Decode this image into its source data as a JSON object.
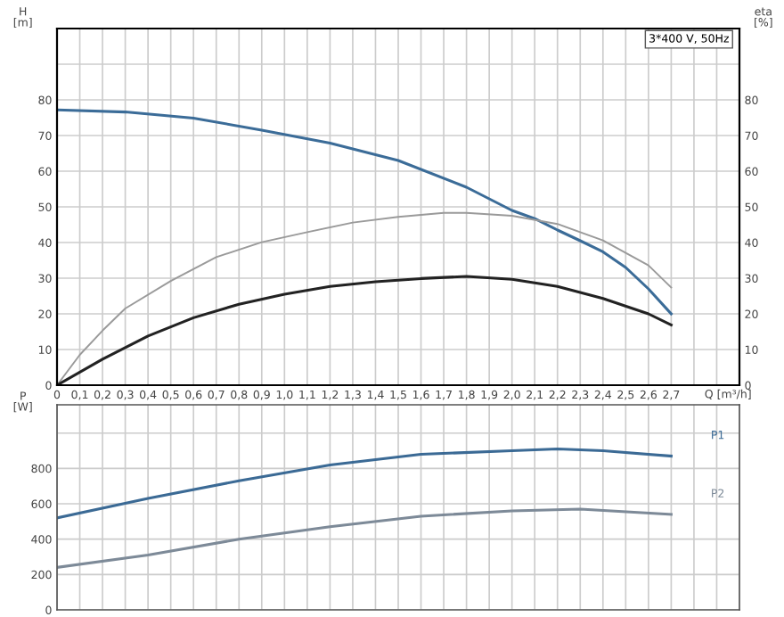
{
  "chart_data": [
    {
      "type": "line",
      "xlabel": "Q [m³/h]",
      "ylabel": "H\n[m]",
      "y2label": "eta\n[%]",
      "annotations": [
        "3*400 V, 50Hz"
      ],
      "xlim": [
        0,
        3.0
      ],
      "xticks": [
        0,
        {
          "value": 0.1,
          "label": "0,1"
        },
        {
          "value": 0.2,
          "label": "0,2"
        },
        {
          "value": 0.3,
          "label": "0,3"
        },
        {
          "value": 0.4,
          "label": "0,4"
        },
        {
          "value": 0.5,
          "label": "0,5"
        },
        {
          "value": 0.6,
          "label": "0,6"
        },
        {
          "value": 0.7,
          "label": "0,7"
        },
        {
          "value": 0.8,
          "label": "0,8"
        },
        {
          "value": 0.9,
          "label": "0,9"
        },
        {
          "value": 1.0,
          "label": "1,0"
        },
        {
          "value": 1.1,
          "label": "1,1"
        },
        {
          "value": 1.2,
          "label": "1,2"
        },
        {
          "value": 1.3,
          "label": "1,3"
        },
        {
          "value": 1.4,
          "label": "1,4"
        },
        {
          "value": 1.5,
          "label": "1,5"
        },
        {
          "value": 1.6,
          "label": "1,6"
        },
        {
          "value": 1.7,
          "label": "1,7"
        },
        {
          "value": 1.8,
          "label": "1,8"
        },
        {
          "value": 1.9,
          "label": "1,9"
        },
        {
          "value": 2.0,
          "label": "2,0"
        },
        {
          "value": 2.1,
          "label": "2,1"
        },
        {
          "value": 2.2,
          "label": "2,2"
        },
        {
          "value": 2.3,
          "label": "2,3"
        },
        {
          "value": 2.4,
          "label": "2,4"
        },
        {
          "value": 2.5,
          "label": "2,5"
        },
        {
          "value": 2.6,
          "label": "2,6"
        },
        {
          "value": 2.7,
          "label": "2,7"
        },
        {
          "value": 2.8,
          "label": null
        },
        {
          "value": 2.9,
          "label": null
        },
        {
          "value": 3.0,
          "label": null
        }
      ],
      "ylim": [
        0,
        100
      ],
      "yticks": [
        0,
        10,
        20,
        30,
        40,
        50,
        60,
        70,
        80,
        {
          "value": 90,
          "label": null
        }
      ],
      "y2lim": [
        0,
        100
      ],
      "y2ticks": [
        0,
        10,
        20,
        30,
        40,
        50,
        60,
        70,
        80,
        {
          "value": 90,
          "label": null
        }
      ],
      "grid": true,
      "legend": false,
      "marker": "none",
      "series": [
        {
          "color": "#3b6c98",
          "x": [
            0,
            0.3,
            0.6,
            0.9,
            1.2,
            1.5,
            1.8,
            2.0,
            2.1,
            2.2,
            2.3,
            2.4,
            2.5,
            2.6,
            2.7
          ],
          "values": [
            77.2,
            76.6,
            74.9,
            71.5,
            67.9,
            63.0,
            55.5,
            49.0,
            46.7,
            43.5,
            40.5,
            37.4,
            33.0,
            27.0,
            20.0
          ]
        },
        {
          "color": "#9a9a9a",
          "axis": "y2",
          "x": [
            0,
            0.1,
            0.2,
            0.3,
            0.5,
            0.7,
            0.9,
            1.1,
            1.3,
            1.5,
            1.7,
            1.8,
            2.0,
            2.2,
            2.4,
            2.6,
            2.7
          ],
          "values": [
            0,
            8.5,
            15.3,
            21.5,
            29.2,
            35.9,
            40.1,
            42.9,
            45.6,
            47.2,
            48.3,
            48.3,
            47.5,
            45.2,
            40.6,
            33.6,
            27.4
          ]
        },
        {
          "color": "#222222",
          "axis": "y2",
          "x": [
            0,
            0.2,
            0.4,
            0.6,
            0.8,
            1.0,
            1.2,
            1.4,
            1.6,
            1.8,
            2.0,
            2.2,
            2.4,
            2.6,
            2.7
          ],
          "values": [
            0,
            7.3,
            13.8,
            18.9,
            22.7,
            25.5,
            27.7,
            29.0,
            29.9,
            30.5,
            29.7,
            27.7,
            24.3,
            20.0,
            16.9
          ]
        }
      ]
    },
    {
      "type": "line",
      "ylabel": "P\n[W]",
      "tick_labels": "y",
      "xlim": [
        0,
        3.0
      ],
      "xticks": [
        0,
        0.1,
        0.2,
        0.3,
        0.4,
        0.5,
        0.6,
        0.7,
        0.8,
        0.9,
        1.0,
        1.1,
        1.2,
        1.3,
        1.4,
        1.5,
        1.6,
        1.7,
        1.8,
        1.9,
        2.0,
        2.1,
        2.2,
        2.3,
        2.4,
        2.5,
        2.6,
        2.7,
        2.8,
        2.9,
        3.0
      ],
      "ylim": [
        0,
        1160
      ],
      "yticks": [
        0,
        200,
        400,
        600,
        800,
        {
          "value": 1000,
          "label": null
        }
      ],
      "grid": true,
      "legend": false,
      "marker": "none",
      "series": [
        {
          "name": "P1",
          "color": "#3b6a95",
          "x": [
            0,
            0.4,
            0.8,
            1.2,
            1.6,
            2.0,
            2.2,
            2.4,
            2.7
          ],
          "values": [
            520,
            630,
            730,
            820,
            880,
            900,
            910,
            900,
            870
          ]
        },
        {
          "name": "P2",
          "color": "#7d8a98",
          "x": [
            0,
            0.4,
            0.8,
            1.2,
            1.6,
            2.0,
            2.3,
            2.7
          ],
          "values": [
            240,
            310,
            400,
            470,
            530,
            560,
            570,
            540
          ]
        }
      ]
    }
  ]
}
